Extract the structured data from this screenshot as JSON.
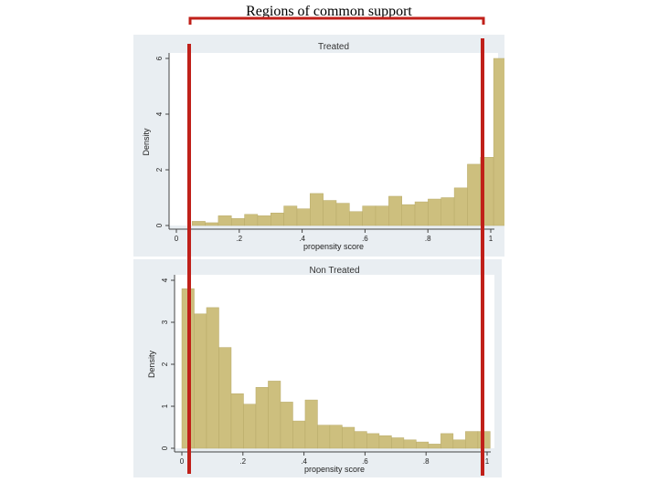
{
  "slide": {
    "title": "Regions of common support",
    "accent_color": "#c0201a"
  },
  "chart_data": [
    {
      "type": "bar",
      "title": "Treated",
      "xlabel": "propensity score",
      "ylabel": "Density",
      "xlim": [
        0,
        1
      ],
      "ylim": [
        0,
        6
      ],
      "xticks": [
        "0",
        ".2",
        ".4",
        ".6",
        ".8",
        "1"
      ],
      "yticks": [
        "0",
        "2",
        "4",
        "6"
      ],
      "bar_color": "#cdbf7e",
      "bin_start": 0.05,
      "bin_width": 0.0417,
      "values": [
        0.15,
        0.1,
        0.35,
        0.25,
        0.4,
        0.35,
        0.45,
        0.7,
        0.6,
        1.15,
        0.9,
        0.8,
        0.5,
        0.7,
        0.7,
        1.05,
        0.75,
        0.85,
        0.95,
        1.0,
        1.35,
        2.2,
        2.45,
        6.0
      ]
    },
    {
      "type": "bar",
      "title": "Non Treated",
      "xlabel": "propensity score",
      "ylabel": "Density",
      "xlim": [
        0,
        1
      ],
      "ylim": [
        0,
        4
      ],
      "xticks": [
        "0",
        ".2",
        ".4",
        ".6",
        ".8",
        "1"
      ],
      "yticks": [
        "0",
        "1",
        "2",
        "3",
        "4"
      ],
      "bar_color": "#cdbf7e",
      "bin_start": 0.0,
      "bin_width": 0.0404,
      "values": [
        3.8,
        3.2,
        3.35,
        2.4,
        1.3,
        1.05,
        1.45,
        1.6,
        1.1,
        0.65,
        1.15,
        0.55,
        0.55,
        0.5,
        0.4,
        0.35,
        0.3,
        0.25,
        0.2,
        0.15,
        0.1,
        0.35,
        0.2,
        0.4,
        0.4
      ]
    }
  ]
}
